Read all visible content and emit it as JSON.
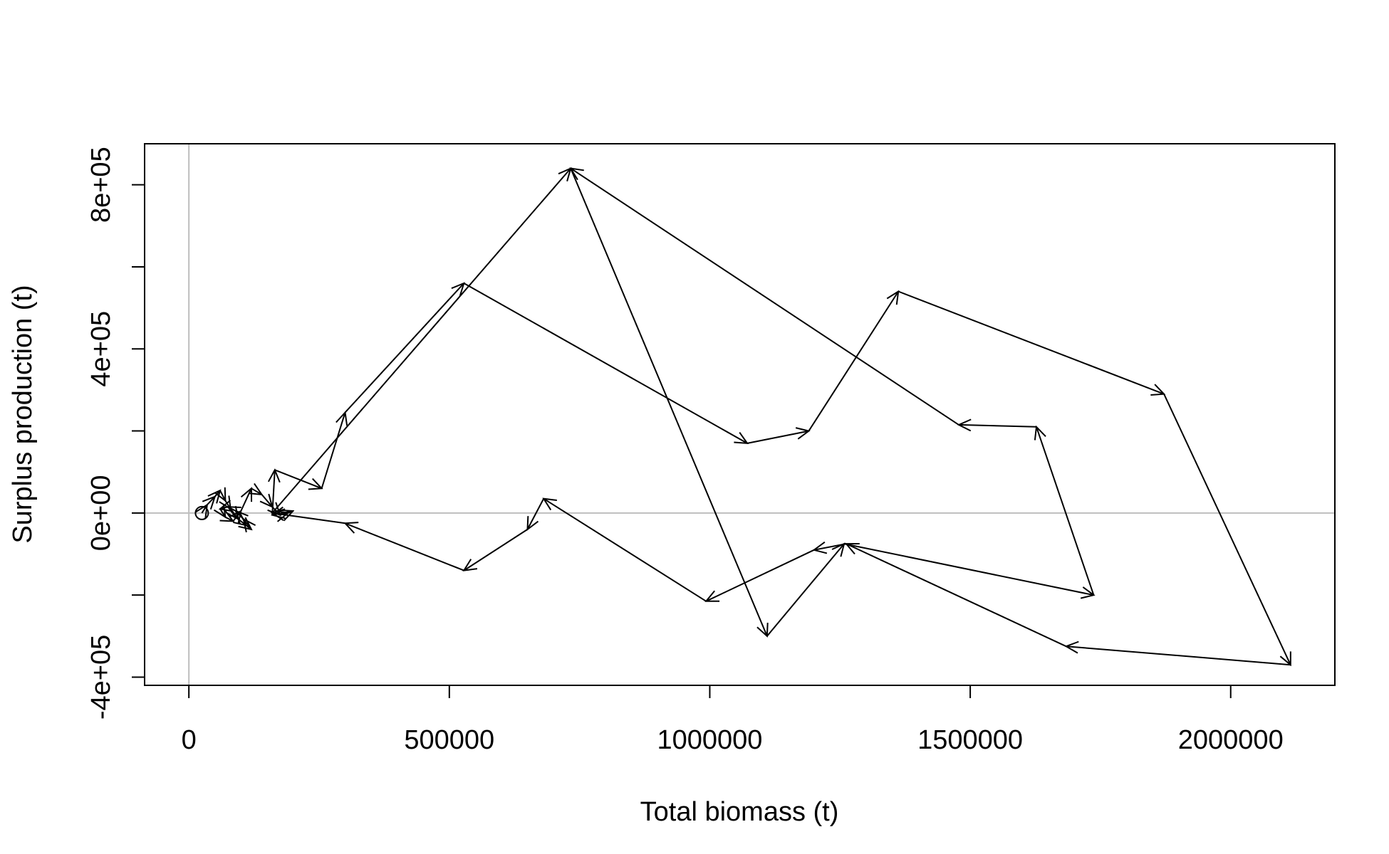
{
  "chart_data": {
    "type": "line",
    "title": "",
    "xlabel": "Total biomass (t)",
    "ylabel": "Surplus production (t)",
    "xlim": [
      -85000,
      2200000
    ],
    "ylim": [
      -420000,
      900000
    ],
    "x_ticks": [
      0,
      500000,
      1000000,
      1500000,
      2000000
    ],
    "x_tick_labels": [
      "0",
      "500000",
      "1000000",
      "1500000",
      "2000000"
    ],
    "y_ticks": [
      -400000,
      0,
      400000,
      800000
    ],
    "y_tick_labels": [
      "-4e+05",
      "0e+00",
      "4e+05",
      "8e+05"
    ],
    "y_minor_ticks": [
      -200000,
      200000,
      600000
    ],
    "reference_lines": {
      "x": 0,
      "y": 0,
      "color": "#bebebe"
    },
    "start_marker": "open-circle",
    "grid": false,
    "series": [
      {
        "style": "arrows",
        "color": "#000000",
        "x": [
          25000,
          35000,
          50000,
          60000,
          70000,
          80000,
          95000,
          110000,
          120000,
          105000,
          90000,
          75000,
          60000,
          70000,
          85000,
          100000,
          120000,
          140000,
          160000,
          175000,
          190000,
          200000,
          160000,
          165000,
          255000,
          300000,
          528000,
          1072000,
          1190000,
          1362000,
          1872000,
          2115000,
          1684000,
          1262000,
          1200000,
          993000,
          681000,
          650000,
          528000,
          300000,
          160000,
          733000,
          1110000,
          1258000,
          1737000,
          1627000,
          1478000,
          733000
        ],
        "y": [
          0,
          20000,
          40000,
          55000,
          30000,
          10000,
          -15000,
          -30000,
          -40000,
          -15000,
          5000,
          15000,
          10000,
          -10000,
          -20000,
          5000,
          60000,
          45000,
          15000,
          -5000,
          0,
          5000,
          -5000,
          105000,
          60000,
          245000,
          560000,
          170000,
          200000,
          540000,
          290000,
          -370000,
          -325000,
          -75000,
          -90000,
          -215000,
          35000,
          -40000,
          -140000,
          -25000,
          0,
          840000,
          -300000,
          -75000,
          -200000,
          210000,
          215000,
          840000
        ]
      }
    ]
  }
}
